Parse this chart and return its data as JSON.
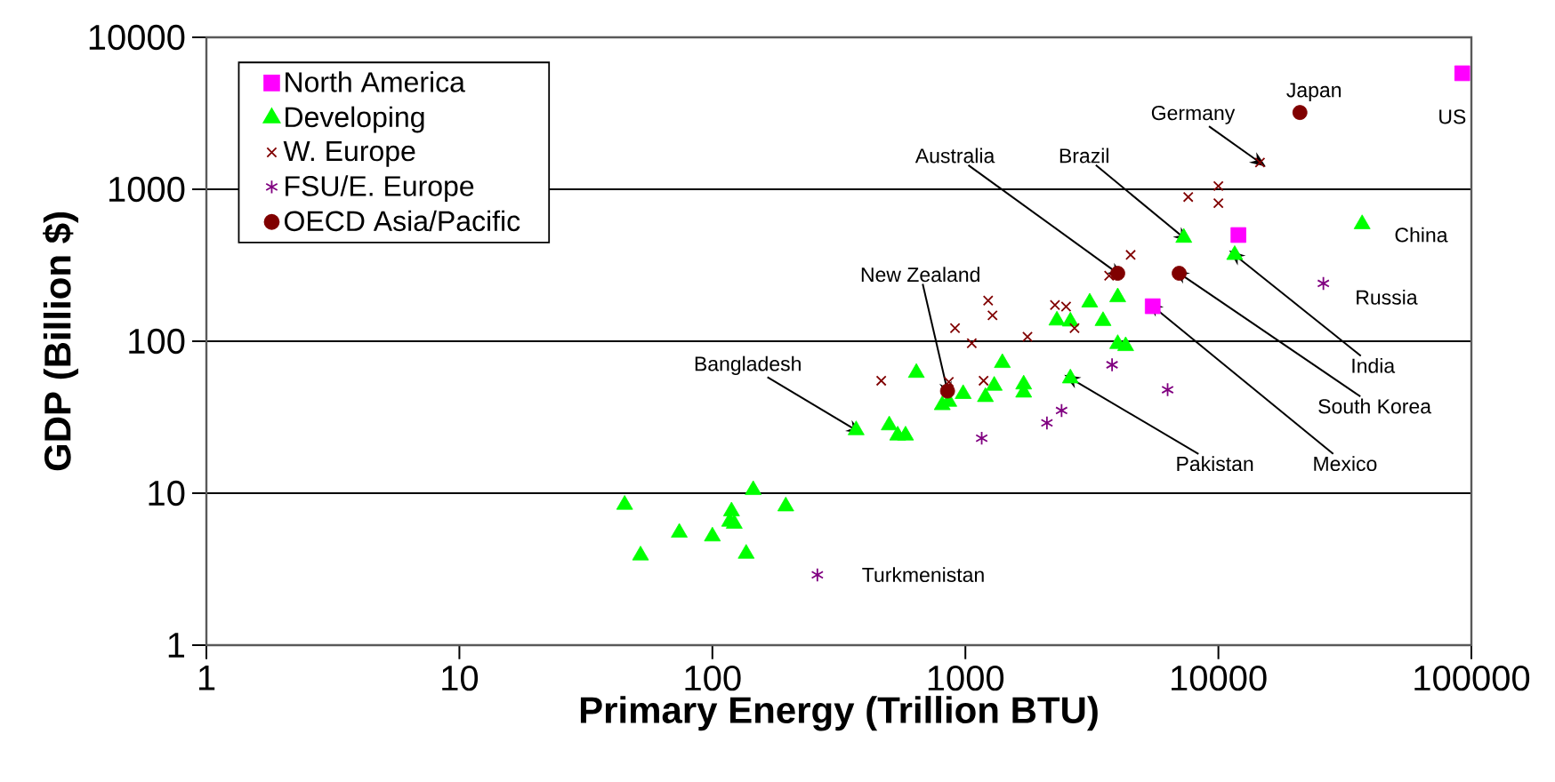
{
  "chart_data": {
    "type": "scatter",
    "xlabel": "Primary Energy (Trillion BTU)",
    "ylabel": "GDP (Billion $)",
    "log": "xy",
    "grid": "y",
    "legend": "top left",
    "xlim": [
      1,
      100000
    ],
    "ylim": [
      1,
      10000
    ],
    "xticks": [
      1,
      10,
      100,
      1000,
      10000,
      100000
    ],
    "yticks": [
      1,
      10,
      100,
      1000,
      10000
    ],
    "series": [
      {
        "name": "North America",
        "color": "#ff00ff",
        "marker": "square",
        "x": [
          92000,
          12000,
          5500
        ],
        "values": [
          5800,
          500,
          170
        ]
      },
      {
        "name": "Developing",
        "color": "#00ff00",
        "marker": "triangle",
        "x": [
          45,
          52,
          74,
          100,
          119,
          117,
          122,
          136,
          145,
          195,
          370,
          500,
          540,
          580,
          640,
          810,
          860,
          980,
          1200,
          1300,
          1400,
          1700,
          1700,
          2300,
          2600,
          3100,
          3500,
          4000,
          4000,
          4300,
          2600,
          7300,
          11600,
          37000
        ],
        "values": [
          8.4,
          3.9,
          5.5,
          5.2,
          7.6,
          6.5,
          6.3,
          4.0,
          10.5,
          8.2,
          26,
          28,
          24,
          24,
          62,
          38,
          40,
          45,
          43,
          51,
          72,
          46,
          52,
          137,
          135,
          180,
          136,
          195,
          96,
          93,
          57,
          480,
          370,
          590
        ]
      },
      {
        "name": "W. Europe",
        "color": "#800000",
        "marker": "cross",
        "x": [
          465,
          860,
          1180,
          910,
          1060,
          1230,
          1280,
          1760,
          2260,
          2500,
          2700,
          3700,
          4500,
          7600,
          10000,
          10000,
          14600
        ],
        "values": [
          55,
          54,
          55,
          122,
          97,
          185,
          148,
          107,
          173,
          169,
          122,
          270,
          370,
          890,
          1050,
          810,
          1500
        ]
      },
      {
        "name": "FSU/E. Europe",
        "color": "#800080",
        "x": [
          260,
          1160,
          2100,
          2400,
          3800,
          6300,
          26000
        ],
        "values": [
          2.9,
          23,
          29,
          35,
          70,
          48,
          240
        ]
      },
      {
        "name": "OECD Asia/Pacific",
        "color": "#800000",
        "marker": "circle",
        "x": [
          21000,
          4000,
          7000,
          850
        ],
        "values": [
          3200,
          280,
          280,
          47
        ]
      }
    ],
    "annotations": [
      {
        "text": "US",
        "x": 92000,
        "y": 5800
      },
      {
        "text": "Japan",
        "x": 21000,
        "y": 3200
      },
      {
        "text": "Germany",
        "x": 14600,
        "y": 1500
      },
      {
        "text": "Australia",
        "x": 4000,
        "y": 280
      },
      {
        "text": "Brazil",
        "x": 7300,
        "y": 480
      },
      {
        "text": "China",
        "x": 37000,
        "y": 590
      },
      {
        "text": "Russia",
        "x": 26000,
        "y": 240
      },
      {
        "text": "New Zealand",
        "x": 850,
        "y": 47
      },
      {
        "text": "Bangladesh",
        "x": 370,
        "y": 26
      },
      {
        "text": "Pakistan",
        "x": 2600,
        "y": 57
      },
      {
        "text": "Mexico",
        "x": 5500,
        "y": 170
      },
      {
        "text": "South Korea",
        "x": 7000,
        "y": 280
      },
      {
        "text": "India",
        "x": 11600,
        "y": 370
      },
      {
        "text": "Turkmenistan",
        "x": 260,
        "y": 2.9
      }
    ]
  }
}
